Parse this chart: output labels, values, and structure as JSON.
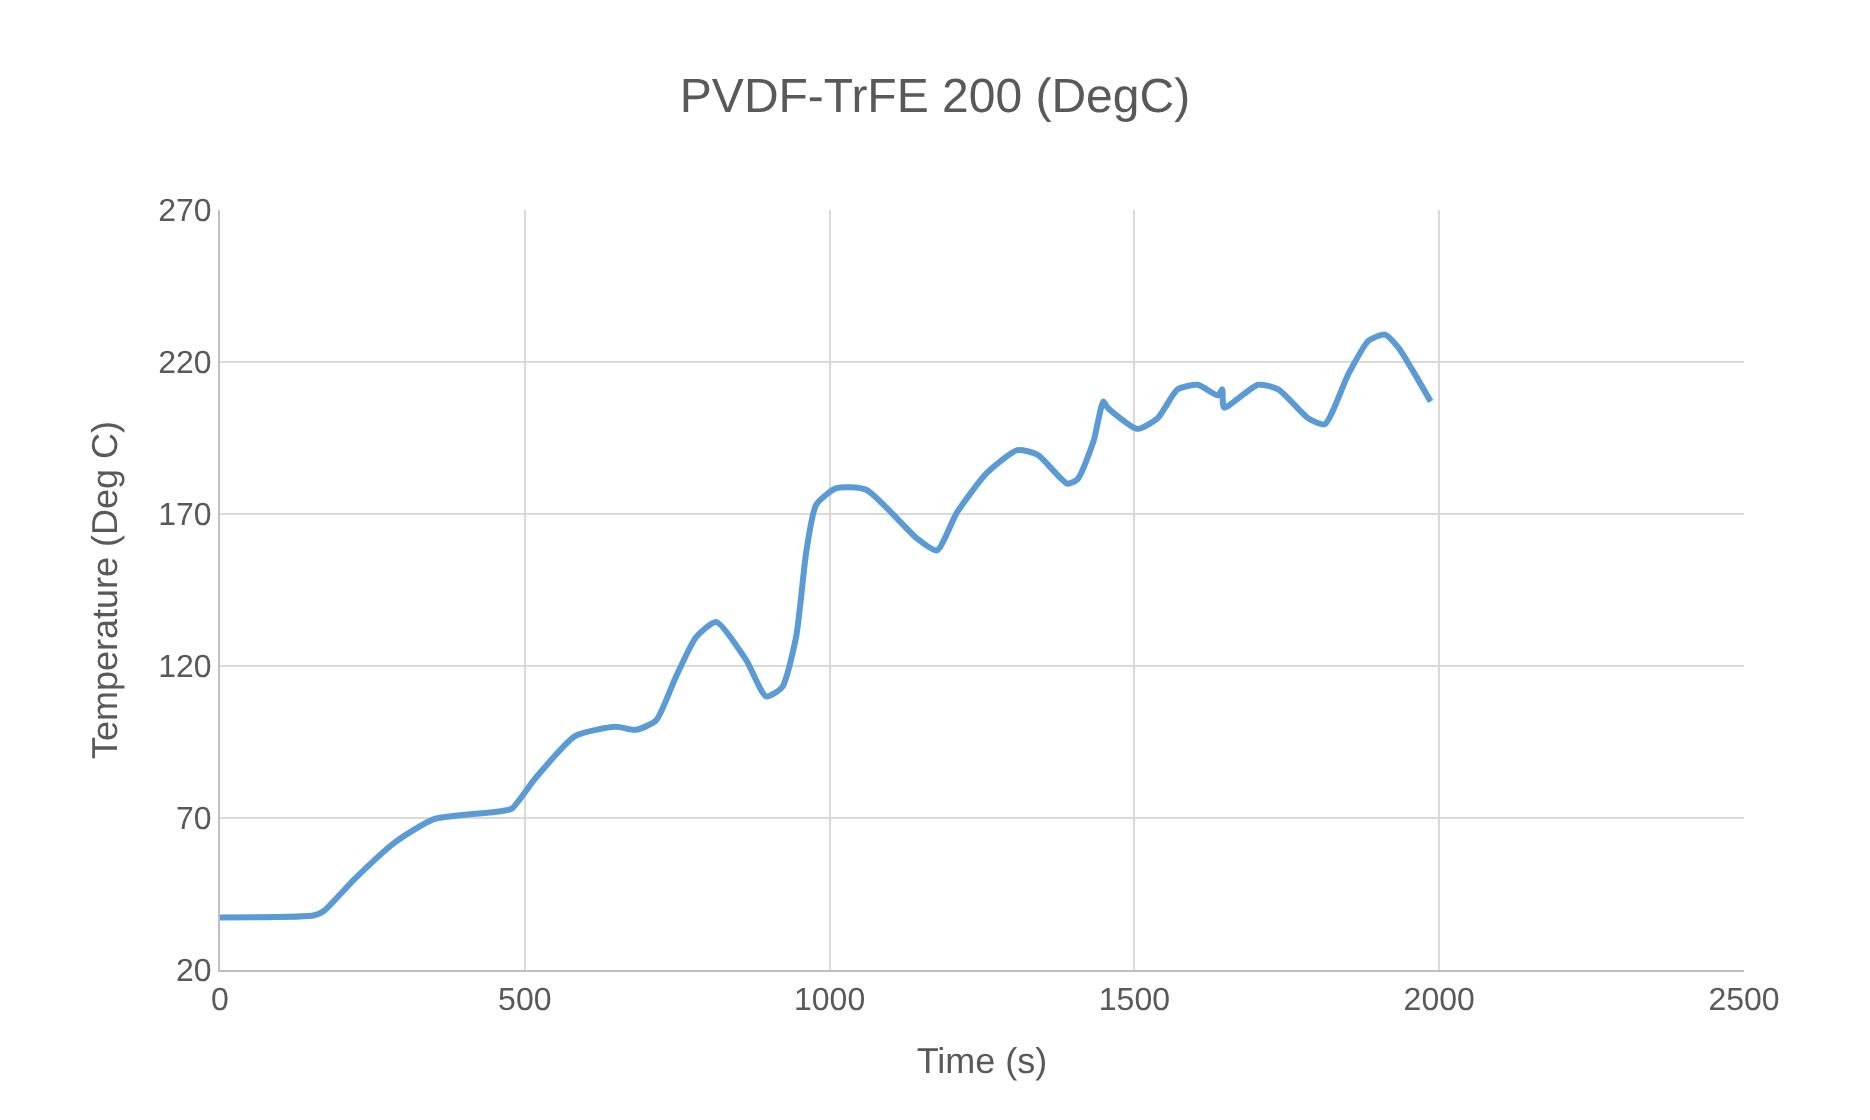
{
  "chart_data": {
    "type": "line",
    "title": "PVDF-TrFE 200 (DegC)",
    "xlabel": "Time (s)",
    "ylabel": "Temperature (Deg C)",
    "xlim": [
      0,
      2500
    ],
    "xticks": [
      0,
      500,
      1000,
      1500,
      2000,
      2500
    ],
    "ylim": [
      20,
      270
    ],
    "yticks": [
      20,
      70,
      120,
      170,
      220,
      270
    ],
    "grid": true,
    "marker": "none",
    "line_style": "solid",
    "series": [
      {
        "color": "#5b9bd5",
        "x": [
          0,
          155,
          171,
          221,
          287,
          352,
          451,
          478,
          517,
          583,
          649,
          682,
          715,
          748,
          781,
          814,
          863,
          896,
          922,
          945,
          962,
          978,
          1011,
          1060,
          1143,
          1176,
          1209,
          1258,
          1308,
          1341,
          1390,
          1407,
          1433,
          1449,
          1456,
          1505,
          1538,
          1571,
          1604,
          1637,
          1644,
          1647,
          1703,
          1736,
          1785,
          1812,
          1851,
          1884,
          1911,
          1934,
          1960,
          1986
        ],
        "values": [
          37.3,
          38,
          39.5,
          50,
          62,
          69.7,
          72,
          73,
          83,
          97,
          100,
          99,
          102,
          116.5,
          129.5,
          134.5,
          122,
          110,
          113,
          129.5,
          158,
          173,
          178.5,
          178,
          162,
          158,
          170.5,
          183.5,
          191,
          189.5,
          180,
          181.5,
          194,
          207,
          205,
          198,
          201.5,
          211,
          212.5,
          209,
          211,
          205,
          212.5,
          211,
          201.5,
          199.5,
          216,
          227,
          229,
          224.5,
          216,
          207
        ]
      }
    ]
  }
}
